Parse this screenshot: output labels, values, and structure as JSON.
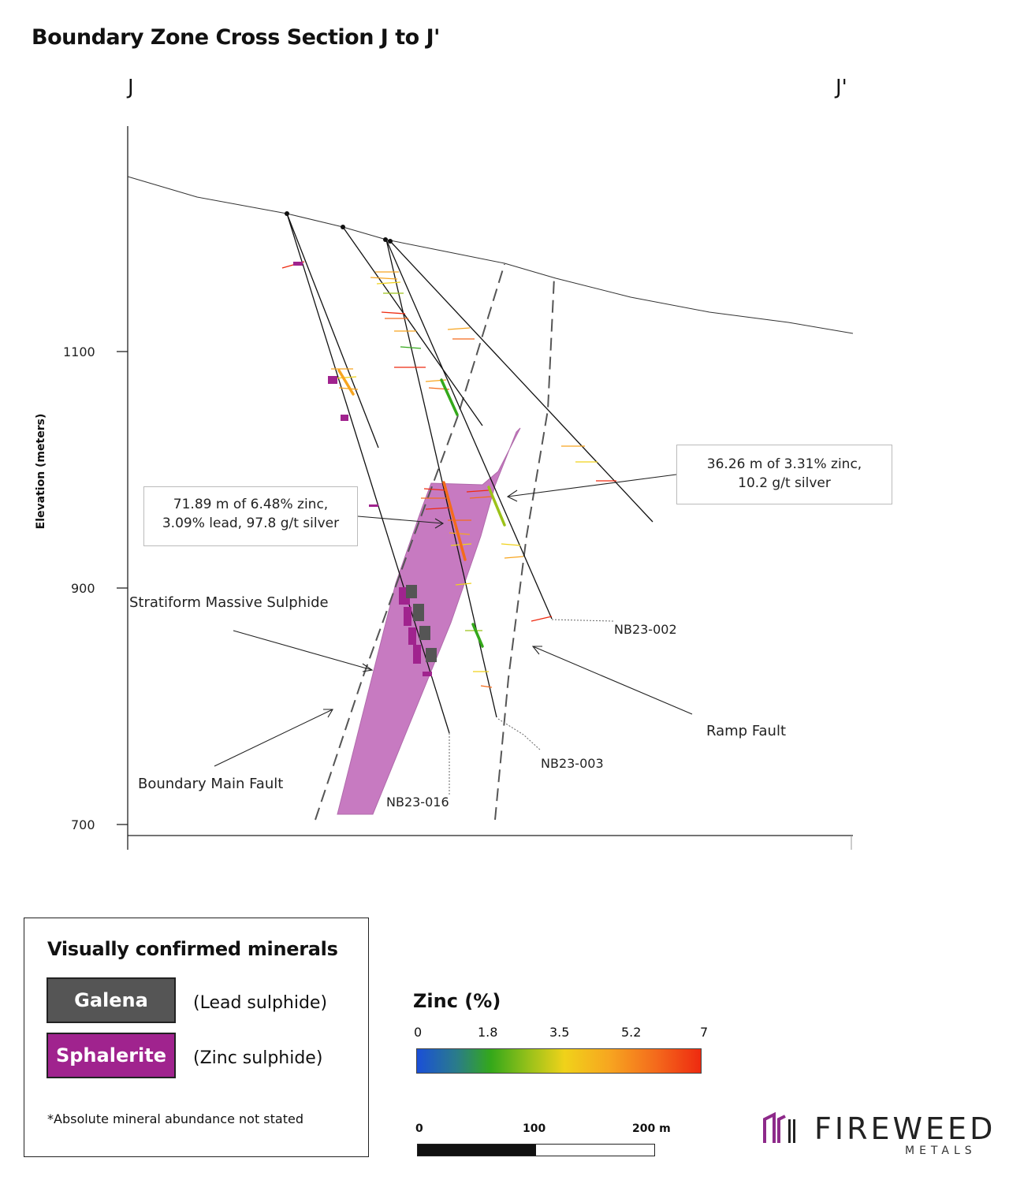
{
  "title": "Boundary Zone Cross Section J to J'",
  "section": {
    "start_label": "J",
    "end_label": "J'",
    "y_axis": {
      "label": "Elevation (meters)",
      "ticks": [
        "1100",
        "900",
        "700"
      ]
    }
  },
  "callouts": {
    "nb23_016": {
      "line1": "71.89 m of 6.48% zinc,",
      "line2": "3.09% lead, 97.8 g/t silver"
    },
    "nb23_002": {
      "line1": "36.26 m of 3.31% zinc,",
      "line2": "10.2 g/t silver"
    }
  },
  "features": {
    "stratiform": "Stratiform Massive Sulphide",
    "boundary_fault": "Boundary Main Fault",
    "ramp_fault": "Ramp Fault"
  },
  "drillholes": {
    "nb23_002": "NB23-002",
    "nb23_003": "NB23-003",
    "nb23_016": "NB23-016"
  },
  "legend": {
    "title": "Visually confirmed minerals",
    "galena": {
      "label": "Galena",
      "description": "(Lead sulphide)",
      "color": "#555555"
    },
    "sphalerite": {
      "label": "Sphalerite",
      "description": "(Zinc sulphide)",
      "color": "#a0238e"
    },
    "note": "*Absolute mineral abundance not stated"
  },
  "zinc_scale": {
    "title": "Zinc (%)",
    "ticks": [
      "0",
      "1.8",
      "3.5",
      "5.2",
      "7"
    ],
    "colors": [
      "#1a4fd8",
      "#34a81a",
      "#f0d21a",
      "#f7a520",
      "#ee2a10"
    ]
  },
  "scale_bar": {
    "ticks": [
      "0",
      "100",
      "200 m"
    ]
  },
  "logo": {
    "name": "FIREWEED",
    "sub": "METALS",
    "color": "#8e2a8a"
  }
}
